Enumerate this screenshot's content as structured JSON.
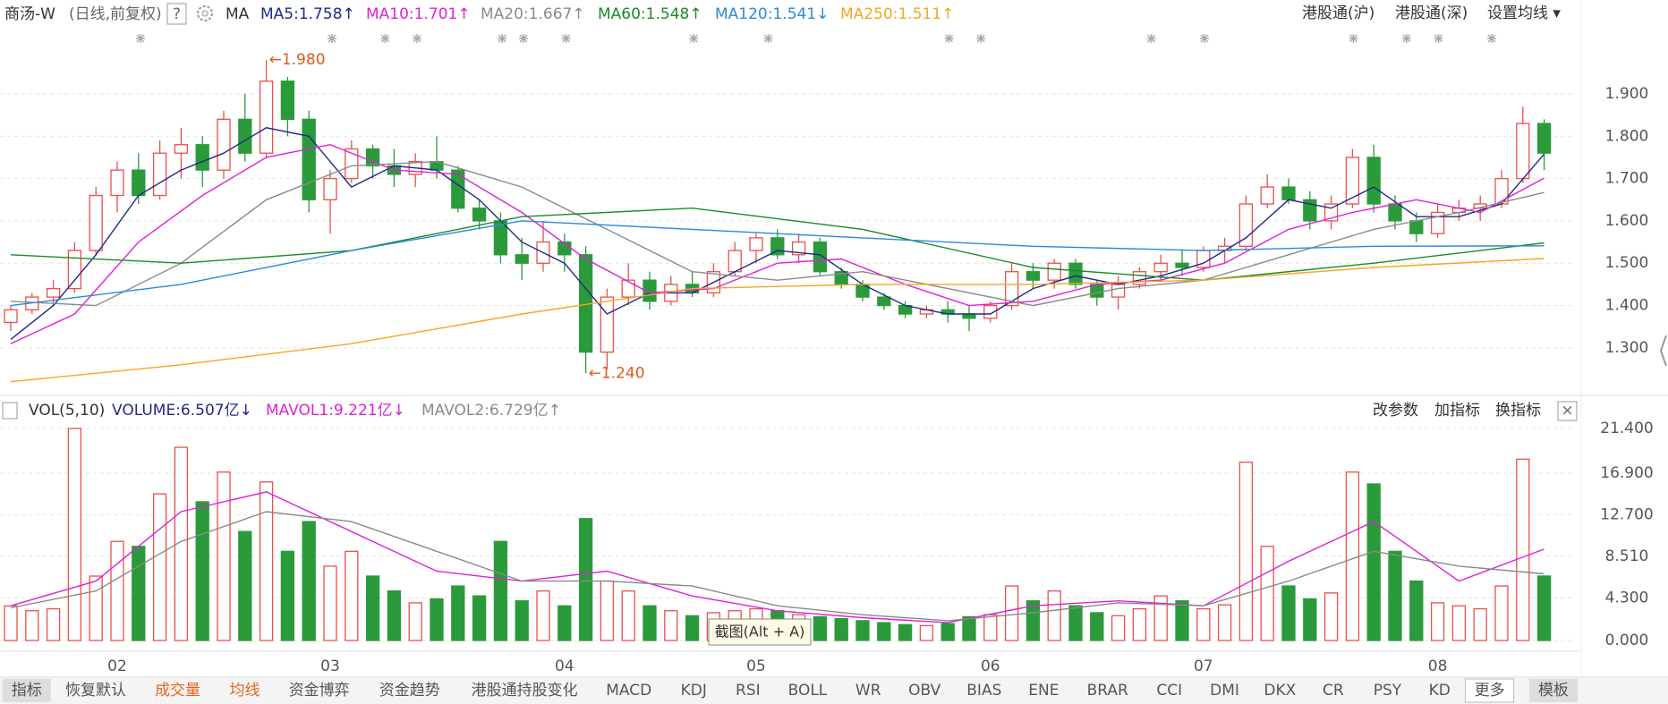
{
  "header": {
    "title": "商汤-W",
    "mode": "(日线,前复权)",
    "help": "?",
    "indicator": "MA",
    "links": [
      "港股通(沪)",
      "港股通(深)",
      "设置均线 ▾"
    ]
  },
  "chart_data": [
    {
      "type": "candlestick",
      "categories": [
        null,
        null,
        null,
        null,
        null,
        "02",
        null,
        null,
        null,
        null,
        null,
        null,
        null,
        null,
        null,
        "03",
        null,
        null,
        null,
        null,
        null,
        null,
        null,
        null,
        null,
        null,
        "04",
        null,
        null,
        null,
        null,
        null,
        null,
        null,
        null,
        "05",
        null,
        null,
        null,
        null,
        null,
        null,
        null,
        null,
        null,
        null,
        "06",
        null,
        null,
        null,
        null,
        null,
        null,
        null,
        null,
        null,
        "07",
        null,
        null,
        null,
        null,
        null,
        null,
        null,
        null,
        null,
        null,
        "08",
        null,
        null,
        null,
        null,
        null
      ],
      "open": [
        1.36,
        1.39,
        1.42,
        1.44,
        1.53,
        1.66,
        1.72,
        1.66,
        1.76,
        1.78,
        1.72,
        1.84,
        1.76,
        1.93,
        1.84,
        1.65,
        1.7,
        1.77,
        1.73,
        1.71,
        1.74,
        1.72,
        1.63,
        1.6,
        1.52,
        1.5,
        1.55,
        1.52,
        1.29,
        1.42,
        1.46,
        1.41,
        1.45,
        1.43,
        1.48,
        1.53,
        1.56,
        1.52,
        1.55,
        1.48,
        1.45,
        1.42,
        1.4,
        1.38,
        1.39,
        1.38,
        1.37,
        1.4,
        1.48,
        1.46,
        1.5,
        1.45,
        1.42,
        1.45,
        1.48,
        1.5,
        1.49,
        1.53,
        1.54,
        1.64,
        1.68,
        1.65,
        1.6,
        1.64,
        1.75,
        1.64,
        1.6,
        1.57,
        1.62,
        1.63,
        1.64,
        1.7,
        1.83
      ],
      "high": [
        1.4,
        1.43,
        1.46,
        1.55,
        1.68,
        1.74,
        1.76,
        1.79,
        1.82,
        1.8,
        1.86,
        1.9,
        1.98,
        1.94,
        1.86,
        1.72,
        1.79,
        1.78,
        1.77,
        1.76,
        1.8,
        1.73,
        1.65,
        1.62,
        1.56,
        1.6,
        1.57,
        1.54,
        1.44,
        1.5,
        1.48,
        1.47,
        1.48,
        1.5,
        1.55,
        1.57,
        1.58,
        1.57,
        1.56,
        1.49,
        1.46,
        1.43,
        1.41,
        1.4,
        1.41,
        1.4,
        1.41,
        1.5,
        1.5,
        1.51,
        1.51,
        1.46,
        1.47,
        1.49,
        1.52,
        1.53,
        1.54,
        1.56,
        1.66,
        1.71,
        1.7,
        1.67,
        1.66,
        1.77,
        1.78,
        1.66,
        1.62,
        1.64,
        1.65,
        1.66,
        1.72,
        1.87,
        1.84
      ],
      "low": [
        1.34,
        1.38,
        1.4,
        1.43,
        1.52,
        1.62,
        1.64,
        1.65,
        1.7,
        1.68,
        1.7,
        1.74,
        1.75,
        1.8,
        1.62,
        1.57,
        1.69,
        1.7,
        1.68,
        1.68,
        1.7,
        1.62,
        1.58,
        1.5,
        1.46,
        1.48,
        1.48,
        1.24,
        1.25,
        1.4,
        1.39,
        1.4,
        1.42,
        1.42,
        1.47,
        1.5,
        1.51,
        1.5,
        1.47,
        1.44,
        1.41,
        1.39,
        1.37,
        1.37,
        1.36,
        1.34,
        1.36,
        1.39,
        1.44,
        1.44,
        1.44,
        1.4,
        1.39,
        1.44,
        1.46,
        1.47,
        1.48,
        1.5,
        1.53,
        1.63,
        1.64,
        1.58,
        1.58,
        1.63,
        1.62,
        1.58,
        1.55,
        1.56,
        1.6,
        1.6,
        1.63,
        1.69,
        1.72
      ],
      "close": [
        1.39,
        1.42,
        1.44,
        1.53,
        1.66,
        1.72,
        1.66,
        1.76,
        1.78,
        1.72,
        1.84,
        1.76,
        1.93,
        1.84,
        1.65,
        1.7,
        1.77,
        1.73,
        1.71,
        1.74,
        1.72,
        1.63,
        1.6,
        1.52,
        1.5,
        1.55,
        1.52,
        1.29,
        1.42,
        1.46,
        1.41,
        1.45,
        1.43,
        1.48,
        1.53,
        1.56,
        1.52,
        1.55,
        1.48,
        1.45,
        1.42,
        1.4,
        1.38,
        1.39,
        1.38,
        1.37,
        1.4,
        1.48,
        1.46,
        1.5,
        1.45,
        1.42,
        1.45,
        1.48,
        1.5,
        1.49,
        1.53,
        1.54,
        1.64,
        1.68,
        1.65,
        1.6,
        1.64,
        1.75,
        1.64,
        1.6,
        1.57,
        1.62,
        1.63,
        1.64,
        1.7,
        1.83,
        1.76
      ],
      "up_color": "#e8504a",
      "down_color": "#2a9a3a",
      "series": [
        {
          "label": "MA5:1.758↑",
          "color": "#1f2a8a",
          "x": [
            0,
            2,
            4,
            6,
            8,
            10,
            12,
            14,
            16,
            18,
            20,
            22,
            24,
            26,
            28,
            30,
            32,
            34,
            36,
            38,
            40,
            42,
            44,
            46,
            48,
            50,
            52,
            54,
            56,
            58,
            60,
            62,
            64,
            66,
            68,
            70,
            72
          ],
          "values": [
            1.32,
            1.4,
            1.52,
            1.66,
            1.72,
            1.76,
            1.82,
            1.8,
            1.68,
            1.73,
            1.72,
            1.65,
            1.55,
            1.5,
            1.38,
            1.43,
            1.43,
            1.48,
            1.53,
            1.52,
            1.45,
            1.4,
            1.38,
            1.38,
            1.44,
            1.47,
            1.45,
            1.47,
            1.5,
            1.56,
            1.65,
            1.63,
            1.68,
            1.61,
            1.61,
            1.64,
            1.758
          ]
        },
        {
          "label": "MA10:1.701↑",
          "color": "#e020d8",
          "x": [
            0,
            3,
            6,
            9,
            12,
            15,
            18,
            21,
            24,
            27,
            30,
            33,
            36,
            39,
            42,
            45,
            48,
            51,
            54,
            57,
            60,
            63,
            66,
            69,
            72
          ],
          "values": [
            1.31,
            1.38,
            1.55,
            1.66,
            1.75,
            1.78,
            1.72,
            1.71,
            1.62,
            1.51,
            1.43,
            1.44,
            1.5,
            1.51,
            1.45,
            1.4,
            1.41,
            1.45,
            1.46,
            1.5,
            1.58,
            1.62,
            1.65,
            1.62,
            1.701
          ]
        },
        {
          "label": "MA20:1.667↑",
          "color": "#8a8a8a",
          "x": [
            0,
            4,
            8,
            12,
            16,
            20,
            24,
            28,
            32,
            36,
            40,
            44,
            48,
            52,
            56,
            60,
            64,
            68,
            72
          ],
          "values": [
            1.41,
            1.4,
            1.5,
            1.65,
            1.73,
            1.74,
            1.68,
            1.58,
            1.48,
            1.46,
            1.48,
            1.44,
            1.4,
            1.44,
            1.46,
            1.52,
            1.58,
            1.62,
            1.667
          ]
        },
        {
          "label": "MA60:1.548↑",
          "color": "#1a8a2a",
          "x": [
            0,
            8,
            16,
            24,
            32,
            40,
            48,
            56,
            64,
            72
          ],
          "values": [
            1.52,
            1.5,
            1.53,
            1.61,
            1.63,
            1.58,
            1.49,
            1.46,
            1.5,
            1.548
          ]
        },
        {
          "label": "MA120:1.541↓",
          "color": "#2a8ad8",
          "x": [
            0,
            8,
            16,
            24,
            32,
            40,
            48,
            56,
            64,
            72
          ],
          "values": [
            1.4,
            1.45,
            1.53,
            1.6,
            1.58,
            1.56,
            1.54,
            1.53,
            1.54,
            1.541
          ]
        },
        {
          "label": "MA250:1.511↑",
          "color": "#f5a623",
          "x": [
            0,
            8,
            16,
            24,
            32,
            40,
            48,
            56,
            64,
            72
          ],
          "values": [
            1.22,
            1.26,
            1.31,
            1.38,
            1.44,
            1.45,
            1.45,
            1.46,
            1.49,
            1.511
          ]
        }
      ],
      "ylim": [
        1.192,
        2.051
      ],
      "yticks": [
        {
          "value": 1.3,
          "label": "1.300"
        },
        {
          "value": 1.4,
          "label": "1.400"
        },
        {
          "value": 1.5,
          "label": "1.500"
        },
        {
          "value": 1.6,
          "label": "1.600"
        },
        {
          "value": 1.7,
          "label": "1.700"
        },
        {
          "value": 1.8,
          "label": "1.800"
        },
        {
          "value": 1.9,
          "label": "1.900"
        }
      ],
      "annotations": [
        "←1.980",
        "←1.240"
      ],
      "grid": true
    },
    {
      "type": "bar",
      "title": "VOL(5,10)",
      "volume_label": "VOLUME:6.507亿↓",
      "values": [
        3.5,
        3.0,
        3.2,
        21.4,
        6.5,
        10,
        9.5,
        14.8,
        19.5,
        14,
        17,
        11,
        16,
        9,
        12,
        7.5,
        9,
        6.5,
        5,
        3.8,
        4.2,
        5.5,
        4.5,
        10,
        4,
        5,
        3.5,
        12.3,
        6,
        5,
        3.5,
        3,
        2.5,
        2.8,
        3,
        3.2,
        3,
        2.6,
        2.4,
        2.2,
        2,
        1.8,
        1.6,
        1.5,
        1.7,
        2.4,
        2.6,
        5.5,
        4,
        5,
        3.5,
        2.8,
        2.5,
        3.2,
        4.5,
        4,
        3.2,
        3.6,
        18,
        9.5,
        5.5,
        4.2,
        4.8,
        17,
        15.8,
        9,
        6,
        3.8,
        3.5,
        3.2,
        5.5,
        18.3,
        6.507
      ],
      "series": [
        {
          "label": "MAVOL1:9.221亿↓",
          "color": "#e020d8",
          "x": [
            0,
            4,
            8,
            12,
            16,
            20,
            24,
            28,
            32,
            36,
            40,
            44,
            48,
            52,
            56,
            60,
            64,
            68,
            72
          ],
          "values": [
            3.5,
            6,
            13,
            15,
            11,
            7,
            6,
            7,
            4.5,
            3,
            2.3,
            1.8,
            3.5,
            4,
            3.5,
            8,
            12,
            6,
            9.221
          ]
        },
        {
          "label": "MAVOL2:6.729亿↑",
          "color": "#8a8a8a",
          "x": [
            0,
            4,
            8,
            12,
            16,
            20,
            24,
            28,
            32,
            36,
            40,
            44,
            48,
            52,
            56,
            60,
            64,
            68,
            72
          ],
          "values": [
            3.3,
            5,
            10,
            13,
            12,
            9,
            6,
            6,
            5.5,
            3.5,
            2.6,
            2,
            2.8,
            3.8,
            3.5,
            6,
            9,
            7.5,
            6.729
          ]
        }
      ],
      "ylim": [
        0,
        21.4
      ],
      "yticks": [
        {
          "value": 0,
          "label": "0.000"
        },
        {
          "value": 4.3,
          "label": "4.300"
        },
        {
          "value": 8.51,
          "label": "8.510"
        },
        {
          "value": 12.7,
          "label": "12.700"
        },
        {
          "value": 16.9,
          "label": "16.900"
        },
        {
          "value": 21.4,
          "label": "21.400"
        }
      ],
      "grid": true
    }
  ],
  "toolbar": {
    "actions": [
      "改参数",
      "加指标",
      "换指标"
    ],
    "close": "×"
  },
  "tabs": [
    {
      "text": "指标"
    },
    {
      "text": "恢复默认"
    },
    {
      "text": "成交量",
      "color": "#e8641b"
    },
    {
      "text": "均线",
      "color": "#e8641b"
    },
    {
      "text": "资金博弈"
    },
    {
      "text": "资金趋势"
    },
    {
      "text": "港股通持股变化"
    },
    {
      "text": "MACD"
    },
    {
      "text": "KDJ"
    },
    {
      "text": "RSI"
    },
    {
      "text": "BOLL"
    },
    {
      "text": "WR"
    },
    {
      "text": "OBV"
    },
    {
      "text": "BIAS"
    },
    {
      "text": "ENE"
    },
    {
      "text": "BRAR"
    },
    {
      "text": "CCI"
    },
    {
      "text": "DMI"
    },
    {
      "text": "DKX"
    },
    {
      "text": "CR"
    },
    {
      "text": "PSY"
    },
    {
      "text": "KD"
    },
    {
      "text": "更多"
    },
    {
      "text": "模板"
    }
  ],
  "tooltip": "截图(Alt + A)"
}
